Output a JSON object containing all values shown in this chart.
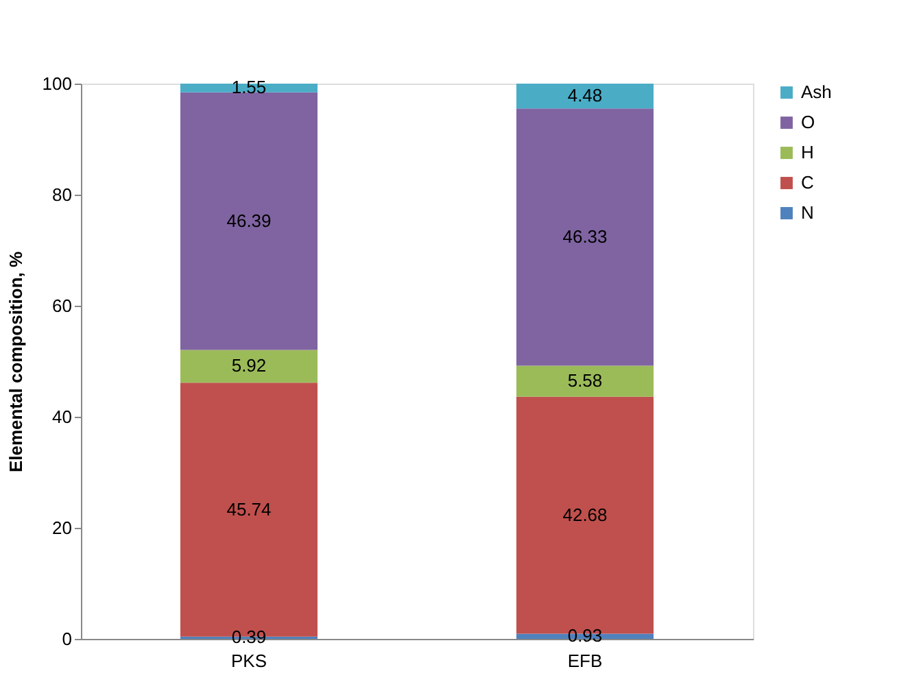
{
  "chart_data": {
    "type": "bar",
    "stacked": true,
    "ylabel": "Elemental composition, %",
    "categories": [
      "PKS",
      "EFB"
    ],
    "series": [
      {
        "name": "N",
        "color": "#4f81bd",
        "values": [
          0.39,
          0.93
        ]
      },
      {
        "name": "C",
        "color": "#c0504d",
        "values": [
          45.74,
          42.68
        ]
      },
      {
        "name": "H",
        "color": "#9bbb59",
        "values": [
          5.92,
          5.58
        ]
      },
      {
        "name": "O",
        "color": "#8064a2",
        "values": [
          46.39,
          46.33
        ]
      },
      {
        "name": "Ash",
        "color": "#4bacc6",
        "values": [
          1.55,
          4.48
        ]
      }
    ],
    "ylim": [
      0,
      100
    ],
    "yticks": [
      0,
      20,
      40,
      60,
      80,
      100
    ],
    "grid": false,
    "legend": "right",
    "data_labels": true
  }
}
